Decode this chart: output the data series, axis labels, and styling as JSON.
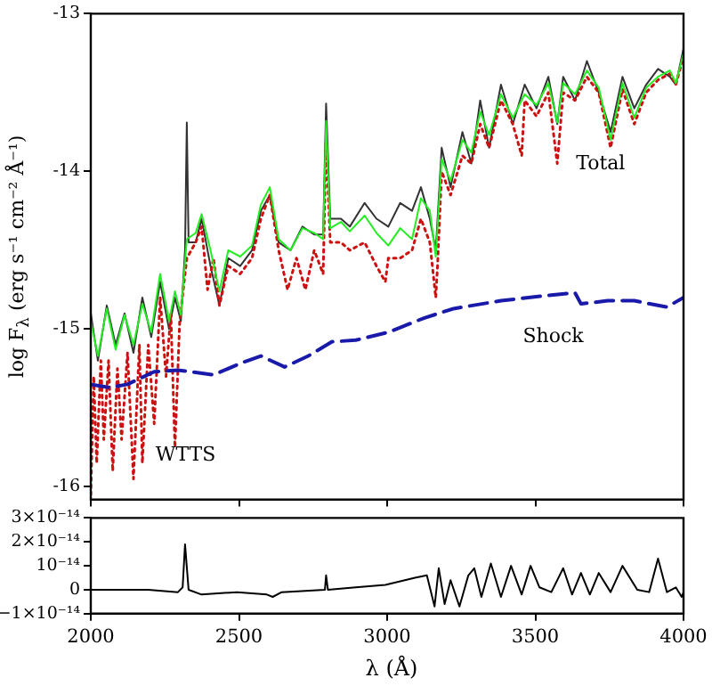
{
  "chart_data": [
    {
      "type": "line",
      "ylabel": "log F$_{λ}$ (erg s⁻¹ cm⁻² Å⁻¹)",
      "xlim": [
        2000,
        4000
      ],
      "xticks": [
        2000,
        2500,
        3000,
        3500,
        4000
      ],
      "ylim": [
        -16.08,
        -13
      ],
      "yticks": [
        -16,
        -15,
        -14,
        -13
      ],
      "tick_labels": "y",
      "grid": false,
      "legend": false,
      "marker": "none",
      "series": [
        {
          "color": "#333333",
          "line_style": "solid",
          "x": [
            2000,
            2024,
            2054,
            2084,
            2114,
            2144,
            2174,
            2204,
            2234,
            2264,
            2284,
            2304,
            2318,
            2324,
            2330,
            2354,
            2374,
            2404,
            2434,
            2464,
            2504,
            2544,
            2574,
            2604,
            2634,
            2674,
            2714,
            2754,
            2784,
            2794,
            2808,
            2844,
            2874,
            2924,
            2964,
            3004,
            3044,
            3084,
            3114,
            3144,
            3164,
            3184,
            3214,
            3254,
            3284,
            3314,
            3344,
            3384,
            3424,
            3464,
            3504,
            3544,
            3574,
            3594,
            3634,
            3674,
            3714,
            3754,
            3794,
            3834,
            3874,
            3914,
            3954,
            3974,
            4000
          ],
          "values": [
            -14.9,
            -15.2,
            -14.85,
            -15.1,
            -14.9,
            -15.15,
            -14.8,
            -15.05,
            -14.7,
            -15.0,
            -14.8,
            -14.95,
            -14.5,
            -13.69,
            -14.45,
            -14.45,
            -14.3,
            -14.6,
            -14.85,
            -14.55,
            -14.6,
            -14.5,
            -14.25,
            -14.15,
            -14.45,
            -14.5,
            -14.35,
            -14.4,
            -14.4,
            -13.57,
            -14.3,
            -14.3,
            -14.35,
            -14.2,
            -14.3,
            -14.35,
            -14.2,
            -14.25,
            -14.1,
            -14.3,
            -14.5,
            -13.85,
            -14.1,
            -13.75,
            -13.95,
            -13.55,
            -13.85,
            -13.45,
            -13.7,
            -13.45,
            -13.6,
            -13.4,
            -13.7,
            -13.4,
            -13.55,
            -13.3,
            -13.5,
            -13.75,
            -13.4,
            -13.6,
            -13.45,
            -13.35,
            -13.4,
            -13.45,
            -13.22
          ]
        },
        {
          "name": "WTTS",
          "color": "#cc1111",
          "line_style": "dotted",
          "x": [
            2000,
            2010,
            2020,
            2034,
            2044,
            2060,
            2074,
            2090,
            2104,
            2124,
            2144,
            2164,
            2174,
            2194,
            2214,
            2234,
            2254,
            2270,
            2284,
            2300,
            2324,
            2354,
            2374,
            2394,
            2414,
            2434,
            2464,
            2504,
            2544,
            2574,
            2604,
            2634,
            2664,
            2694,
            2724,
            2754,
            2784,
            2794,
            2808,
            2844,
            2874,
            2924,
            2964,
            2994,
            3004,
            3044,
            3084,
            3114,
            3144,
            3164,
            3170,
            3184,
            3214,
            3254,
            3284,
            3314,
            3344,
            3384,
            3424,
            3454,
            3464,
            3504,
            3544,
            3574,
            3594,
            3634,
            3674,
            3714,
            3754,
            3794,
            3834,
            3874,
            3914,
            3954,
            3974,
            4000
          ],
          "values": [
            -16.05,
            -15.3,
            -15.85,
            -15.2,
            -15.7,
            -15.2,
            -15.9,
            -15.25,
            -15.7,
            -15.15,
            -15.95,
            -15.1,
            -15.85,
            -15.1,
            -15.6,
            -14.8,
            -15.3,
            -14.9,
            -15.75,
            -14.95,
            -14.55,
            -14.45,
            -14.35,
            -14.75,
            -14.55,
            -14.85,
            -14.6,
            -14.65,
            -14.55,
            -14.3,
            -14.15,
            -14.5,
            -14.75,
            -14.55,
            -14.75,
            -14.5,
            -14.65,
            -13.8,
            -14.45,
            -14.45,
            -14.5,
            -14.45,
            -14.6,
            -14.7,
            -14.55,
            -14.55,
            -14.5,
            -14.3,
            -14.45,
            -14.8,
            -14.6,
            -14.0,
            -14.15,
            -13.9,
            -13.95,
            -13.7,
            -13.85,
            -13.55,
            -13.7,
            -13.9,
            -13.55,
            -13.65,
            -13.5,
            -13.95,
            -13.5,
            -13.55,
            -13.4,
            -13.5,
            -13.85,
            -13.48,
            -13.7,
            -13.5,
            -13.42,
            -13.38,
            -13.45,
            -13.27
          ]
        },
        {
          "name": "Total",
          "color": "#22ee22",
          "line_style": "solid",
          "x": [
            2000,
            2024,
            2054,
            2084,
            2114,
            2144,
            2174,
            2204,
            2234,
            2264,
            2284,
            2304,
            2324,
            2354,
            2374,
            2404,
            2434,
            2464,
            2504,
            2544,
            2574,
            2604,
            2634,
            2674,
            2714,
            2754,
            2784,
            2794,
            2808,
            2844,
            2874,
            2924,
            2964,
            3004,
            3044,
            3084,
            3114,
            3144,
            3164,
            3184,
            3214,
            3254,
            3284,
            3314,
            3344,
            3384,
            3424,
            3464,
            3504,
            3544,
            3574,
            3594,
            3634,
            3674,
            3714,
            3754,
            3794,
            3834,
            3874,
            3914,
            3954,
            3974,
            4000
          ],
          "values": [
            -14.95,
            -15.17,
            -14.87,
            -15.13,
            -14.91,
            -15.1,
            -14.84,
            -15.02,
            -14.65,
            -14.95,
            -14.76,
            -14.91,
            -14.43,
            -14.39,
            -14.27,
            -14.5,
            -14.76,
            -14.5,
            -14.54,
            -14.47,
            -14.21,
            -14.1,
            -14.43,
            -14.5,
            -14.36,
            -14.39,
            -14.43,
            -13.68,
            -14.36,
            -14.32,
            -14.38,
            -14.28,
            -14.39,
            -14.47,
            -14.36,
            -14.43,
            -14.17,
            -14.25,
            -14.54,
            -13.92,
            -14.06,
            -13.8,
            -13.88,
            -13.62,
            -13.77,
            -13.51,
            -13.66,
            -13.51,
            -13.58,
            -13.44,
            -13.69,
            -13.44,
            -13.51,
            -13.36,
            -13.47,
            -13.8,
            -13.44,
            -13.66,
            -13.47,
            -13.4,
            -13.36,
            -13.44,
            -13.25
          ]
        },
        {
          "name": "Shock",
          "color": "#1a1aaa",
          "line_style": "dashed",
          "x": [
            2000,
            2064,
            2124,
            2214,
            2294,
            2414,
            2514,
            2574,
            2654,
            2734,
            2814,
            2894,
            3004,
            3124,
            3224,
            3384,
            3524,
            3634,
            3654,
            3744,
            3834,
            3944,
            4000
          ],
          "values": [
            -15.35,
            -15.37,
            -15.35,
            -15.27,
            -15.26,
            -15.29,
            -15.21,
            -15.17,
            -15.24,
            -15.17,
            -15.08,
            -15.07,
            -15.02,
            -14.93,
            -14.87,
            -14.82,
            -14.79,
            -14.77,
            -14.84,
            -14.82,
            -14.82,
            -14.86,
            -14.8
          ]
        }
      ]
    },
    {
      "type": "line",
      "xlabel": "λ (Å)",
      "xlim": [
        2000,
        4000
      ],
      "xticks": [
        2000,
        2500,
        3000,
        3500,
        4000
      ],
      "ylim": [
        -1e-14,
        3e-14
      ],
      "yticks": [
        {
          "value": -1e-14,
          "label": "−1×10⁻¹⁴"
        },
        0,
        {
          "value": 1e-14,
          "label": "10⁻¹⁴"
        },
        {
          "value": 2e-14,
          "label": "2×10⁻¹⁴"
        },
        {
          "value": 3e-14,
          "label": "3×10⁻¹⁴"
        }
      ],
      "grid": false,
      "legend": false,
      "marker": "none",
      "series": [
        {
          "color": "#000000",
          "line_style": "solid",
          "x": [
            2000,
            2194,
            2294,
            2310,
            2318,
            2330,
            2374,
            2494,
            2594,
            2614,
            2644,
            2790,
            2794,
            2800,
            2894,
            2994,
            3094,
            3134,
            3160,
            3174,
            3194,
            3214,
            3244,
            3274,
            3294,
            3318,
            3350,
            3384,
            3418,
            3454,
            3484,
            3514,
            3554,
            3594,
            3624,
            3654,
            3684,
            3714,
            3754,
            3794,
            3844,
            3884,
            3914,
            3944,
            3974,
            3994,
            4000
          ],
          "values": [
            0,
            0,
            -1e-15,
            1e-15,
            1.9e-14,
            0,
            -2e-15,
            -1e-15,
            -2e-15,
            -3e-15,
            -1e-15,
            0,
            6e-15,
            0,
            1e-15,
            2e-15,
            5e-15,
            6e-15,
            -7e-15,
            9e-15,
            -6e-15,
            4e-15,
            -7e-15,
            6e-15,
            9e-15,
            -3e-15,
            1.1e-14,
            -3e-15,
            1e-14,
            -2e-15,
            1e-14,
            1e-15,
            -1e-15,
            9e-15,
            -2e-15,
            7e-15,
            -2e-15,
            7e-15,
            -1e-15,
            1e-14,
            0,
            -1e-15,
            1.3e-14,
            -1e-15,
            1e-15,
            -3e-15,
            -1e-15
          ]
        }
      ]
    }
  ]
}
